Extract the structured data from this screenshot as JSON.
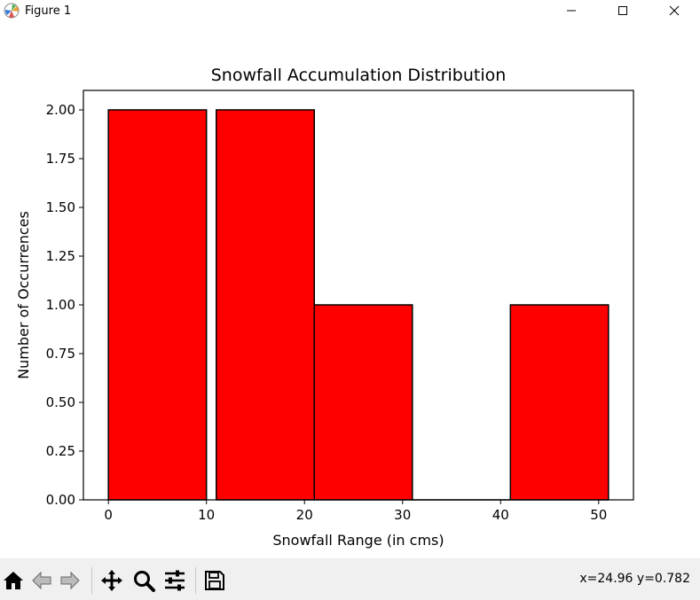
{
  "window": {
    "title": "Figure 1",
    "controls": [
      "minimize-icon",
      "maximize-icon",
      "close-icon"
    ]
  },
  "toolbar": {
    "tools": [
      "home-icon",
      "back-icon",
      "forward-icon",
      "pan-icon",
      "zoom-icon",
      "configure-subplots-icon",
      "save-icon"
    ],
    "coords": "x=24.96 y=0.782"
  },
  "chart_data": {
    "type": "bar",
    "title": "Snowfall Accumulation Distribution",
    "xlabel": "Snowfall Range (in cms)",
    "ylabel": "Number of Occurrences",
    "bins": [
      [
        0,
        10
      ],
      [
        11,
        21
      ],
      [
        21,
        31
      ],
      [
        31,
        41
      ],
      [
        41,
        51
      ]
    ],
    "values": [
      2,
      2,
      1,
      0,
      1
    ],
    "xlim": [
      -2.55,
      53.55
    ],
    "ylim": [
      0,
      2.1
    ],
    "xticks": [
      0,
      10,
      20,
      30,
      40,
      50
    ],
    "yticks": [
      0.0,
      0.25,
      0.5,
      0.75,
      1.0,
      1.25,
      1.5,
      1.75,
      2.0
    ],
    "ytick_labels": [
      "0.00",
      "0.25",
      "0.50",
      "0.75",
      "1.00",
      "1.25",
      "1.50",
      "1.75",
      "2.00"
    ],
    "bar_color": "#ff0000",
    "edge_color": "#000000",
    "grid": false
  }
}
